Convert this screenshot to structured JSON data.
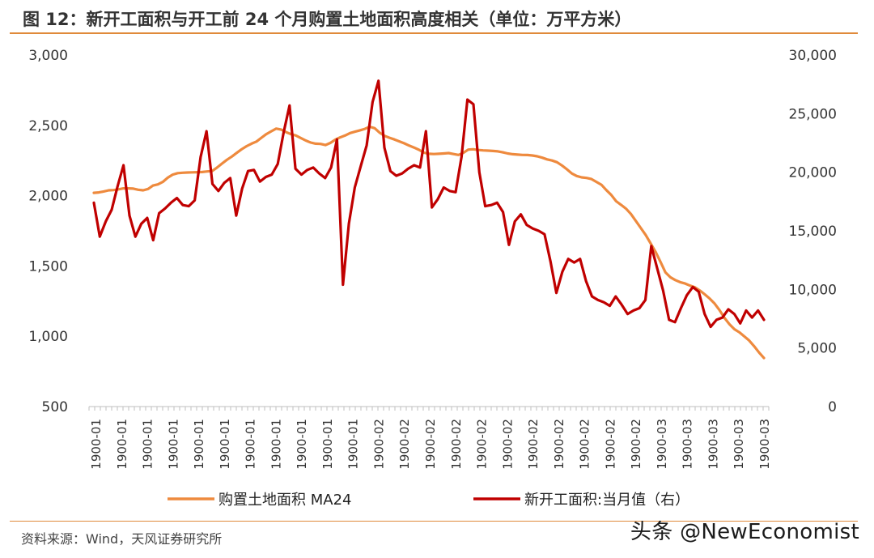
{
  "header": {
    "title": "图 12：新开工面积与开工前 24 个月购置土地面积高度相关（单位：万平方米）"
  },
  "footer": {
    "source": "资料来源：Wind，天风证券研究所",
    "watermark": "头条 @NewEconomist"
  },
  "colors": {
    "accent_rule": "#e08a3a",
    "series_land": "#ee8a3e",
    "series_starts": "#c00000"
  },
  "chart_data": {
    "type": "line",
    "title": "新开工面积与开工前 24 个月购置土地面积高度相关（单位：万平方米）",
    "x_tick_labels": [
      "1900-01",
      "1900-01",
      "1900-01",
      "1900-01",
      "1900-01",
      "1900-01",
      "1900-01",
      "1900-01",
      "1900-01",
      "1900-01",
      "1900-01",
      "1900-02",
      "1900-02",
      "1900-02",
      "1900-02",
      "1900-02",
      "1900-02",
      "1900-02",
      "1900-02",
      "1900-02",
      "1900-02",
      "1900-02",
      "1900-03",
      "1900-03",
      "1900-03",
      "1900-03",
      "1900-03"
    ],
    "y_left": {
      "ticks": [
        500,
        1000,
        1500,
        2000,
        2500,
        3000
      ],
      "tick_labels": [
        "500",
        "1,000",
        "1,500",
        "2,000",
        "2,500",
        "3,000"
      ],
      "range": [
        500,
        3000
      ]
    },
    "y_right": {
      "ticks": [
        0,
        5000,
        10000,
        15000,
        20000,
        25000,
        30000
      ],
      "tick_labels": [
        "0",
        "5,000",
        "10,000",
        "15,000",
        "20,000",
        "25,000",
        "30,000"
      ],
      "range": [
        0,
        30000
      ]
    },
    "grid": false,
    "legend_position": "bottom",
    "series": [
      {
        "name": "购置土地面积 MA24",
        "axis": "left",
        "color": "#ee8a3e",
        "values": [
          2020,
          2023,
          2030,
          2038,
          2040,
          2045,
          2052,
          2052,
          2050,
          2042,
          2038,
          2048,
          2072,
          2080,
          2098,
          2128,
          2150,
          2160,
          2163,
          2165,
          2166,
          2167,
          2168,
          2172,
          2175,
          2200,
          2228,
          2255,
          2278,
          2305,
          2330,
          2352,
          2370,
          2385,
          2412,
          2438,
          2458,
          2477,
          2470,
          2452,
          2438,
          2428,
          2410,
          2392,
          2378,
          2370,
          2368,
          2360,
          2375,
          2398,
          2415,
          2428,
          2445,
          2455,
          2465,
          2475,
          2490,
          2480,
          2448,
          2425,
          2412,
          2400,
          2386,
          2372,
          2356,
          2342,
          2326,
          2306,
          2298,
          2296,
          2298,
          2300,
          2303,
          2296,
          2290,
          2305,
          2328,
          2330,
          2325,
          2322,
          2320,
          2318,
          2315,
          2308,
          2300,
          2295,
          2292,
          2290,
          2289,
          2286,
          2280,
          2270,
          2258,
          2250,
          2238,
          2215,
          2188,
          2158,
          2140,
          2130,
          2126,
          2118,
          2098,
          2078,
          2040,
          2005,
          1960,
          1935,
          1908,
          1870,
          1820,
          1770,
          1720,
          1660,
          1600,
          1530,
          1455,
          1420,
          1400,
          1385,
          1375,
          1360,
          1348,
          1325,
          1298,
          1268,
          1232,
          1185,
          1130,
          1085,
          1050,
          1028,
          1000,
          970,
          930,
          885,
          845
        ]
      },
      {
        "name": "新开工面积:当月值（右）",
        "axis": "right",
        "color": "#c00000",
        "values": [
          17400,
          14500,
          15800,
          16800,
          18800,
          20600,
          16300,
          14500,
          15600,
          16100,
          14200,
          16500,
          16900,
          17400,
          17800,
          17200,
          17100,
          17600,
          21300,
          23500,
          19000,
          18400,
          19100,
          19500,
          16300,
          18600,
          20100,
          20200,
          19200,
          19600,
          19800,
          20700,
          23400,
          25700,
          20300,
          19800,
          20200,
          20400,
          19900,
          19500,
          20400,
          22800,
          10400,
          15600,
          18700,
          20500,
          22300,
          26000,
          27800,
          22100,
          20100,
          19700,
          19900,
          20300,
          20600,
          20400,
          23500,
          17000,
          17700,
          18700,
          18400,
          18300,
          21300,
          26200,
          25800,
          20000,
          17100,
          17200,
          17400,
          16600,
          13800,
          15800,
          16400,
          15500,
          15200,
          15000,
          14700,
          12400,
          9700,
          11500,
          12600,
          12300,
          12600,
          10700,
          9400,
          9100,
          8900,
          8600,
          9400,
          8700,
          7900,
          8200,
          8400,
          9100,
          13700,
          11800,
          9900,
          7400,
          7200,
          8400,
          9500,
          10200,
          9800,
          7900,
          6800,
          7400,
          7600,
          8300,
          7900,
          7100,
          8200,
          7600,
          8200,
          7400
        ]
      }
    ]
  }
}
